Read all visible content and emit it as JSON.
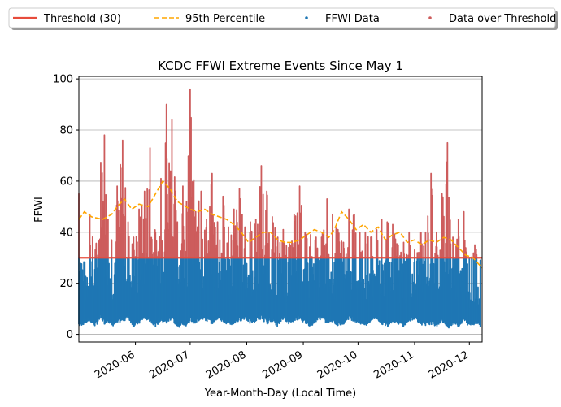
{
  "chart_data": {
    "type": "scatter",
    "title": "KCDC FFWI Extreme Events Since May 1",
    "xlabel": "Year-Month-Day (Local Time)",
    "ylabel": "FFWI",
    "xlim": [
      "2020-05-01",
      "2020-12-08"
    ],
    "ylim": [
      -3,
      101
    ],
    "y_ticks": [
      0,
      20,
      40,
      60,
      80,
      100
    ],
    "x_ticks": [
      "2020-06",
      "2020-07",
      "2020-08",
      "2020-09",
      "2020-10",
      "2020-11",
      "2020-12"
    ],
    "grid": "horizontal",
    "legend_position": "top-center, outside plot, one row",
    "threshold": 30,
    "colors": {
      "threshold": "#e74c3c",
      "percentile": "#ffa500",
      "data": "#1f77b4",
      "over": "#cd5c5c"
    },
    "legend": [
      {
        "label": "Threshold (30)",
        "kind": "line"
      },
      {
        "label": "95th Percentile",
        "kind": "dashed"
      },
      {
        "label": "FFWI Data",
        "kind": "dot-blue"
      },
      {
        "label": "Data over Threshold",
        "kind": "dot-red"
      }
    ],
    "series": [
      {
        "name": "95th Percentile",
        "x": [
          "2020-05-01",
          "2020-05-04",
          "2020-05-08",
          "2020-05-14",
          "2020-05-19",
          "2020-05-22",
          "2020-05-26",
          "2020-05-30",
          "2020-06-03",
          "2020-06-08",
          "2020-06-12",
          "2020-06-16",
          "2020-06-20",
          "2020-06-24",
          "2020-07-01",
          "2020-07-05",
          "2020-07-09",
          "2020-07-13",
          "2020-07-17",
          "2020-07-21",
          "2020-07-25",
          "2020-07-29",
          "2020-08-02",
          "2020-08-06",
          "2020-08-10",
          "2020-08-14",
          "2020-08-18",
          "2020-08-22",
          "2020-08-26",
          "2020-08-30",
          "2020-09-03",
          "2020-09-07",
          "2020-09-11",
          "2020-09-15",
          "2020-09-18",
          "2020-09-22",
          "2020-09-26",
          "2020-09-30",
          "2020-10-04",
          "2020-10-08",
          "2020-10-12",
          "2020-10-16",
          "2020-10-20",
          "2020-10-24",
          "2020-10-28",
          "2020-11-01",
          "2020-11-05",
          "2020-11-09",
          "2020-11-13",
          "2020-11-17",
          "2020-11-21",
          "2020-11-25",
          "2020-11-29",
          "2020-12-03",
          "2020-12-08"
        ],
        "y": [
          45,
          48,
          46,
          45,
          47,
          50,
          53,
          49,
          51,
          50,
          55,
          60,
          57,
          52,
          49,
          48,
          49,
          47,
          46,
          45,
          43,
          40,
          36,
          38,
          40,
          40,
          37,
          36,
          36,
          37,
          39,
          41,
          40,
          38,
          41,
          48,
          45,
          41,
          43,
          40,
          42,
          37,
          39,
          40,
          36,
          37,
          35,
          37,
          36,
          38,
          37,
          34,
          31,
          30,
          26
        ]
      },
      {
        "name": "FFWI Data",
        "x": [
          "2020-05-01",
          "2020-05-04",
          "2020-05-07",
          "2020-05-10",
          "2020-05-13",
          "2020-05-15",
          "2020-05-17",
          "2020-05-19",
          "2020-05-22",
          "2020-05-25",
          "2020-05-28",
          "2020-05-31",
          "2020-06-03",
          "2020-06-06",
          "2020-06-09",
          "2020-06-12",
          "2020-06-15",
          "2020-06-18",
          "2020-06-21",
          "2020-06-24",
          "2020-06-27",
          "2020-06-29",
          "2020-07-01",
          "2020-07-04",
          "2020-07-07",
          "2020-07-10",
          "2020-07-13",
          "2020-07-16",
          "2020-07-19",
          "2020-07-22",
          "2020-07-25",
          "2020-07-28",
          "2020-07-31",
          "2020-08-03",
          "2020-08-06",
          "2020-08-09",
          "2020-08-12",
          "2020-08-15",
          "2020-08-18",
          "2020-08-21",
          "2020-08-24",
          "2020-08-27",
          "2020-08-30",
          "2020-09-02",
          "2020-09-05",
          "2020-09-08",
          "2020-09-11",
          "2020-09-14",
          "2020-09-17",
          "2020-09-20",
          "2020-09-23",
          "2020-09-26",
          "2020-09-29",
          "2020-10-02",
          "2020-10-05",
          "2020-10-08",
          "2020-10-11",
          "2020-10-14",
          "2020-10-17",
          "2020-10-20",
          "2020-10-23",
          "2020-10-26",
          "2020-10-29",
          "2020-11-01",
          "2020-11-04",
          "2020-11-07",
          "2020-11-10",
          "2020-11-13",
          "2020-11-16",
          "2020-11-19",
          "2020-11-22",
          "2020-11-25",
          "2020-11-28",
          "2020-12-01",
          "2020-12-04",
          "2020-12-07"
        ],
        "y": [
          55,
          28,
          47,
          33,
          67,
          78,
          45,
          37,
          58,
          76,
          44,
          38,
          49,
          56,
          73,
          40,
          61,
          90,
          84,
          44,
          58,
          52,
          96,
          48,
          56,
          45,
          63,
          44,
          54,
          42,
          49,
          57,
          42,
          44,
          45,
          66,
          56,
          46,
          38,
          41,
          34,
          47,
          58,
          40,
          39,
          38,
          38,
          53,
          47,
          41,
          36,
          49,
          47,
          40,
          40,
          38,
          41,
          45,
          44,
          43,
          35,
          36,
          40,
          33,
          40,
          40,
          63,
          40,
          55,
          75,
          38,
          45,
          48,
          30,
          35,
          29
        ],
        "min": [
          3,
          4,
          5,
          3,
          6,
          4,
          5,
          3,
          4,
          5,
          6,
          3,
          4,
          6,
          5,
          3,
          5,
          4,
          6,
          2,
          4,
          3,
          5,
          4,
          6,
          5,
          4,
          6,
          5,
          3,
          4,
          5,
          6,
          4,
          5,
          6,
          4,
          5,
          3,
          6,
          4,
          5,
          6,
          4,
          3,
          5,
          6,
          4,
          5,
          3,
          4,
          6,
          5,
          4,
          3,
          5,
          6,
          4,
          3,
          5,
          4,
          3,
          5,
          6,
          4,
          3,
          4,
          3,
          5,
          2,
          4,
          3,
          5,
          3,
          4,
          3
        ]
      }
    ]
  }
}
